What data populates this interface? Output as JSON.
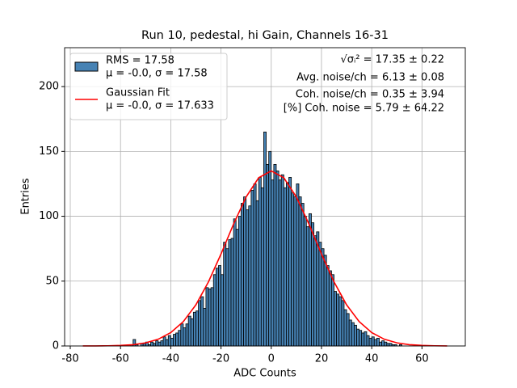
{
  "chart_data": {
    "type": "histogram",
    "title": "Run 10, pedestal, hi Gain, Channels 16-31",
    "x_label": "ADC Counts",
    "y_label": "Entries",
    "xlim": [
      -82.25,
      77.25
    ],
    "ylim": [
      0,
      230
    ],
    "xticks": [
      -80,
      -60,
      -40,
      -20,
      0,
      20,
      40,
      60
    ],
    "yticks": [
      0,
      50,
      100,
      150,
      200
    ],
    "grid": true,
    "legend": "upper left",
    "bins": [
      -75,
      -74,
      -73,
      -72,
      -71,
      -70,
      -69,
      -68,
      -67,
      -66,
      -65,
      -64,
      -63,
      -62,
      -61,
      -60,
      -59,
      -58,
      -57,
      -56,
      -55,
      -54,
      -53,
      -52,
      -51,
      -50,
      -49,
      -48,
      -47,
      -46,
      -45,
      -44,
      -43,
      -42,
      -41,
      -40,
      -39,
      -38,
      -37,
      -36,
      -35,
      -34,
      -33,
      -32,
      -31,
      -30,
      -29,
      -28,
      -27,
      -26,
      -25,
      -24,
      -23,
      -22,
      -21,
      -20,
      -19,
      -18,
      -17,
      -16,
      -15,
      -14,
      -13,
      -12,
      -11,
      -10,
      -9,
      -8,
      -7,
      -6,
      -5,
      -4,
      -3,
      -2,
      -1,
      0,
      1,
      2,
      3,
      4,
      5,
      6,
      7,
      8,
      9,
      10,
      11,
      12,
      13,
      14,
      15,
      16,
      17,
      18,
      19,
      20,
      21,
      22,
      23,
      24,
      25,
      26,
      27,
      28,
      29,
      30,
      31,
      32,
      33,
      34,
      35,
      36,
      37,
      38,
      39,
      40,
      41,
      42,
      43,
      44,
      45,
      46,
      47,
      48,
      49,
      50,
      51,
      52,
      53,
      54,
      55,
      56,
      57,
      58,
      59,
      60,
      61,
      62,
      63,
      64,
      65,
      66,
      67,
      68,
      69,
      70
    ],
    "series": [
      {
        "type": "histogram",
        "name": [
          "RMS = 17.58",
          "μ = -0.0, σ = 17.58"
        ],
        "color": "#4682b4",
        "edgecolor": "#000000",
        "values": [
          0,
          0,
          0,
          0,
          0,
          0,
          0,
          0,
          0,
          0,
          0,
          0,
          0,
          0,
          0,
          0,
          0,
          0,
          0,
          1,
          5,
          1,
          0,
          2,
          2,
          3,
          1,
          3,
          2,
          4,
          3,
          4,
          7,
          5,
          8,
          6,
          9,
          10,
          12,
          17,
          14,
          17,
          23,
          21,
          26,
          27,
          35,
          38,
          29,
          45,
          44,
          45,
          55,
          60,
          62,
          55,
          80,
          75,
          82,
          83,
          98,
          90,
          100,
          110,
          115,
          105,
          108,
          120,
          125,
          112,
          130,
          122,
          165,
          140,
          150,
          128,
          140,
          135,
          128,
          132,
          122,
          126,
          130,
          118,
          115,
          125,
          115,
          110,
          100,
          92,
          102,
          95,
          85,
          88,
          80,
          75,
          70,
          62,
          58,
          55,
          42,
          40,
          38,
          35,
          28,
          25,
          20,
          18,
          16,
          13,
          12,
          10,
          11,
          8,
          6,
          7,
          5,
          6,
          3,
          4,
          3,
          2,
          2,
          1,
          1,
          0,
          1,
          0,
          0,
          0,
          0,
          0,
          0,
          0,
          0,
          0,
          0,
          0,
          0,
          0,
          0,
          0,
          0,
          0,
          0
        ]
      },
      {
        "type": "line",
        "name": [
          "Gaussian Fit",
          "μ = -0.0, σ = 17.633"
        ],
        "color": "#ff0000",
        "x": [
          -75,
          -70,
          -65,
          -60,
          -55,
          -50,
          -45,
          -40,
          -35,
          -30,
          -25,
          -20,
          -15,
          -10,
          -5,
          0,
          5,
          10,
          15,
          20,
          25,
          30,
          35,
          40,
          45,
          50,
          55,
          60,
          65,
          70
        ],
        "values": [
          0.016,
          0.05,
          0.15,
          0.4,
          1.0,
          2.4,
          5.2,
          10.3,
          18.8,
          31.7,
          49.4,
          70.9,
          94.0,
          114.9,
          129.7,
          135,
          129.7,
          114.9,
          94.0,
          70.9,
          49.4,
          31.7,
          18.8,
          10.3,
          5.2,
          2.4,
          1.0,
          0.4,
          0.15,
          0.05
        ]
      }
    ],
    "annotations": [
      "√σᵢ² = 17.35 ± 0.22",
      "Avg. noise/ch = 6.13 ± 0.08",
      "Coh. noise/ch = 0.35 ± 3.94",
      "[%] Coh. noise = 5.79 ± 64.22"
    ]
  }
}
